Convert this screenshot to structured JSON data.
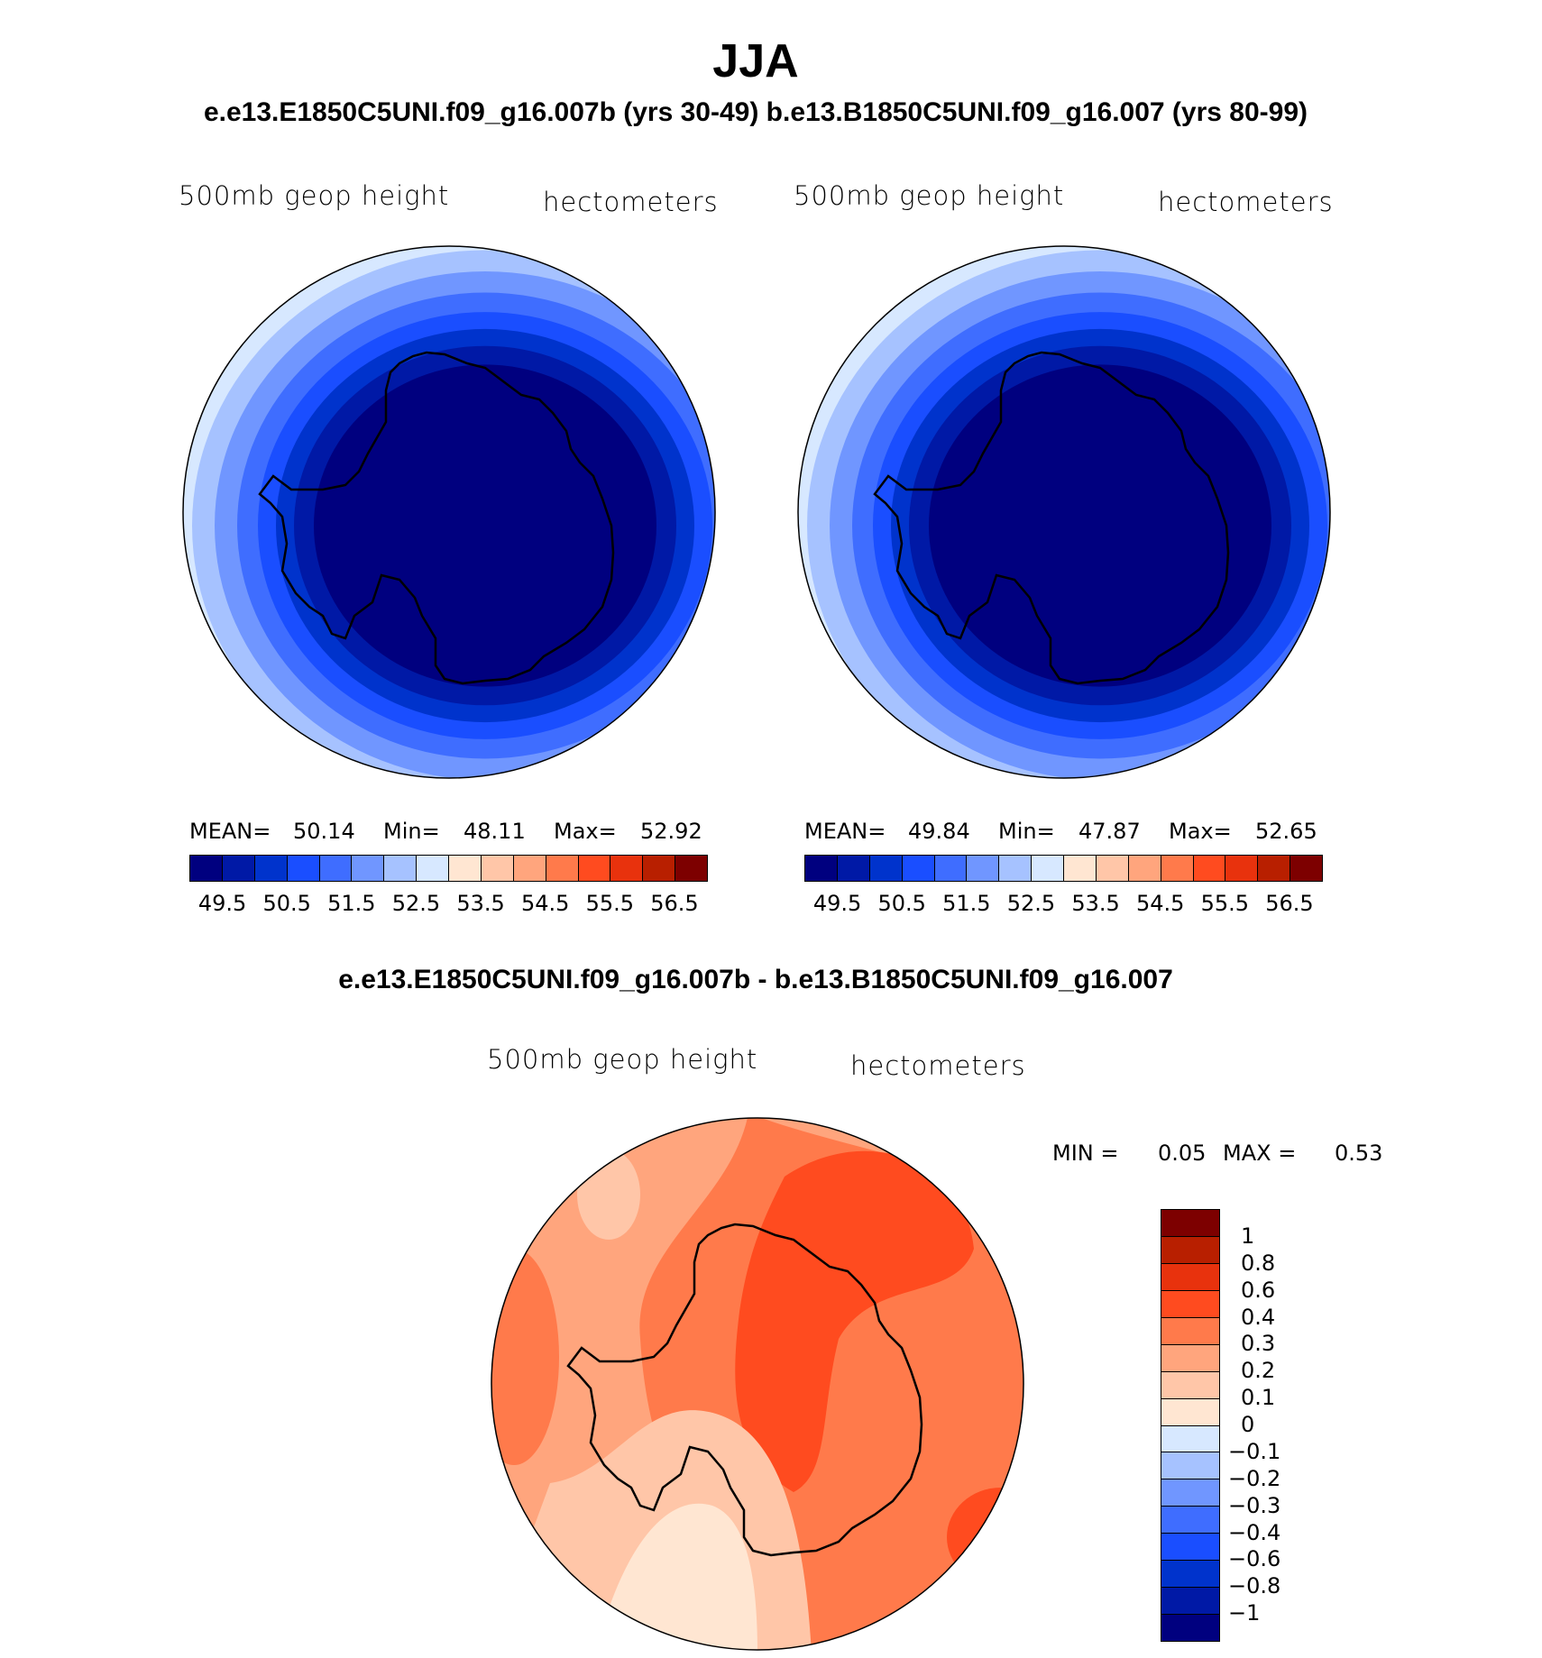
{
  "figure": {
    "title": "JJA",
    "subtitle": "e.e13.E1850C5UNI.f09_g16.007b (yrs 30-49)  b.e13.B1850C5UNI.f09_g16.007 (yrs 80-99)",
    "diff_title": "e.e13.E1850C5UNI.f09_g16.007b - b.e13.B1850C5UNI.f09_g16.007"
  },
  "panels": [
    {
      "field_label": "500mb geop height",
      "units_label": "hectometers",
      "mean_label": "MEAN=",
      "mean_value": "50.14",
      "min_label": "Min=",
      "min_value": "48.11",
      "max_label": "Max=",
      "max_value": "52.92"
    },
    {
      "field_label": "500mb geop height",
      "units_label": "hectometers",
      "mean_label": "MEAN=",
      "mean_value": "49.84",
      "min_label": "Min=",
      "min_value": "47.87",
      "max_label": "Max=",
      "max_value": "52.65"
    }
  ],
  "diff_panel": {
    "field_label": "500mb geop height",
    "units_label": "hectometers",
    "min_label": "MIN =",
    "min_value": "0.05",
    "max_label": "MAX =",
    "max_value": "0.53"
  },
  "abs_colorbar": {
    "colors": [
      "#00007f",
      "#0019a6",
      "#0033cc",
      "#1a4eff",
      "#3f6dff",
      "#7096ff",
      "#a6c2ff",
      "#d7e8ff",
      "#ffe6d2",
      "#ffc6a8",
      "#ffa57d",
      "#ff7a4b",
      "#ff4b1f",
      "#e8320d",
      "#b81f00",
      "#7d0000"
    ],
    "tick_labels": [
      "49.5",
      "50.5",
      "51.5",
      "52.5",
      "53.5",
      "54.5",
      "55.5",
      "56.5"
    ]
  },
  "diff_colorbar": {
    "colors": [
      "#7d0000",
      "#b81f00",
      "#e8320d",
      "#ff4b1f",
      "#ff7a4b",
      "#ffa57d",
      "#ffc6a8",
      "#ffe6d2",
      "#d7e8ff",
      "#a6c2ff",
      "#7096ff",
      "#3f6dff",
      "#1a4eff",
      "#0033cc",
      "#0019a6",
      "#00007f"
    ],
    "tick_labels": [
      "1",
      "0.8",
      "0.6",
      "0.4",
      "0.3",
      "0.2",
      "0.1",
      "0",
      "−0.1",
      "−0.2",
      "−0.3",
      "−0.4",
      "−0.6",
      "−0.8",
      "−1"
    ]
  },
  "map_colors": {
    "abs_levels": [
      "#d7e8ff",
      "#a6c2ff",
      "#7096ff",
      "#3f6dff",
      "#1a4eff",
      "#0033cc",
      "#0019a6",
      "#00007f"
    ],
    "diff_background": "#ffa57d",
    "diff_warm": "#ff7a4b",
    "diff_hot": "#ff4b1f",
    "diff_light": "#ffc6a8",
    "diff_pale": "#ffe6d2",
    "coastline": "#000000"
  }
}
